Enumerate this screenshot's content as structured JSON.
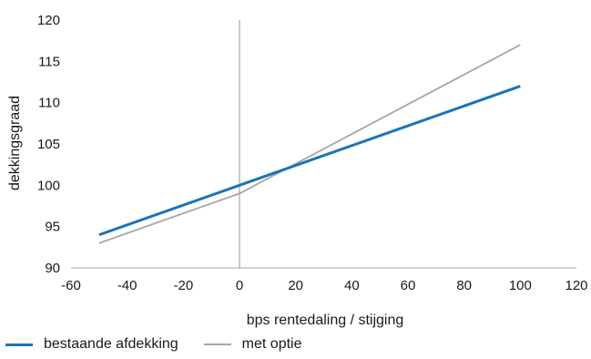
{
  "chart_data": {
    "type": "line",
    "xlabel": "bps rentedaling / stijging",
    "ylabel": "dekkingsgraad",
    "xlim": [
      -60,
      120
    ],
    "ylim": [
      90,
      120
    ],
    "xticks": [
      -60,
      -40,
      -20,
      0,
      20,
      40,
      60,
      80,
      100,
      120
    ],
    "yticks": [
      90,
      95,
      100,
      105,
      110,
      115,
      120
    ],
    "xtick_labels": [
      "-60",
      "-40",
      "-20",
      "0",
      "20",
      "40",
      "60",
      "80",
      "100",
      "120"
    ],
    "ytick_labels": [
      "90",
      "95",
      "100",
      "105",
      "110",
      "115",
      "120"
    ],
    "vertical_reference_line_x": 0,
    "grid": false,
    "legend_position": "bottom-left",
    "series": [
      {
        "name": "bestaande afdekking",
        "color": "#1a73b8",
        "x": [
          -50,
          0,
          100
        ],
        "y": [
          94,
          100,
          112
        ]
      },
      {
        "name": "met optie",
        "color": "#a6a6a6",
        "x": [
          -50,
          0,
          100
        ],
        "y": [
          93,
          99,
          117
        ]
      }
    ]
  }
}
